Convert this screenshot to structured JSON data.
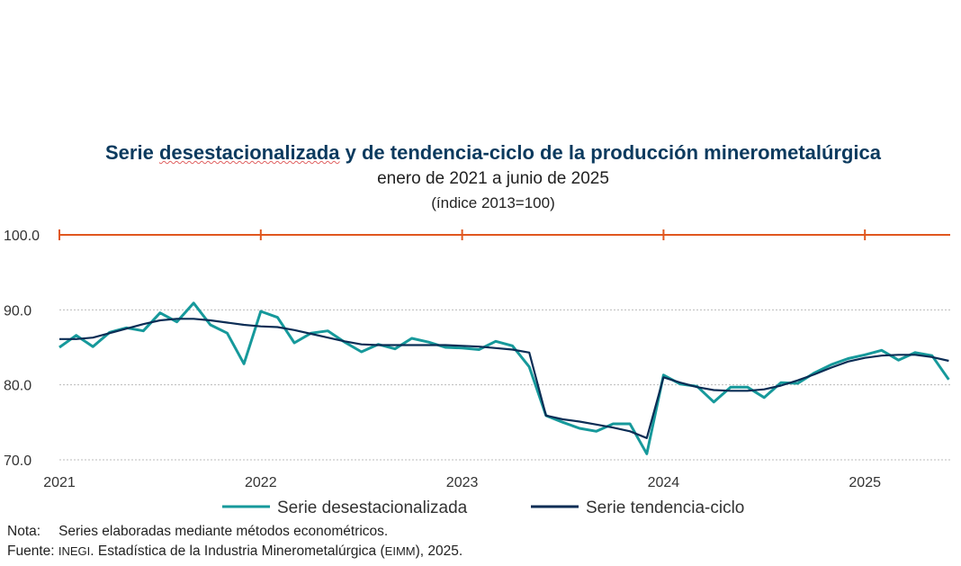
{
  "chart_data": {
    "type": "line",
    "title_part1": "Serie",
    "title_part2": "desestacionalizada",
    "title_part3": "y de tendencia-ciclo de la producción minerometalúrgica",
    "subtitle": "enero de 2021 a junio de 2025",
    "unit": "(índice 2013=100)",
    "x_start": "2021-01",
    "x_end": "2025-06",
    "x_ticks": [
      "2021",
      "2022",
      "2023",
      "2024",
      "2025"
    ],
    "y_ticks": [
      "70.0",
      "80.0",
      "90.0",
      "100.0"
    ],
    "ylim": [
      70,
      100
    ],
    "reference_line": 100,
    "series": [
      {
        "name": "Serie desestacionalizada",
        "color": "#16999b",
        "values": [
          85.0,
          86.6,
          85.1,
          87.0,
          87.6,
          87.2,
          89.6,
          88.4,
          90.9,
          88.0,
          86.9,
          82.8,
          89.8,
          89.0,
          85.6,
          86.9,
          87.2,
          85.7,
          84.4,
          85.4,
          84.8,
          86.2,
          85.7,
          85.0,
          84.9,
          84.7,
          85.8,
          85.2,
          82.4,
          75.9,
          75.0,
          74.2,
          73.8,
          74.8,
          74.8,
          70.8,
          81.3,
          80.1,
          79.8,
          77.7,
          79.7,
          79.7,
          78.3,
          80.3,
          80.2,
          81.6,
          82.7,
          83.5,
          84.0,
          84.6,
          83.3,
          84.3,
          83.9,
          80.7
        ]
      },
      {
        "name": "Serie tendencia-ciclo",
        "color": "#0b2d55",
        "values": [
          86.1,
          86.1,
          86.3,
          86.9,
          87.5,
          88.1,
          88.6,
          88.8,
          88.8,
          88.6,
          88.3,
          88.0,
          87.8,
          87.7,
          87.3,
          86.8,
          86.3,
          85.8,
          85.4,
          85.3,
          85.3,
          85.3,
          85.3,
          85.3,
          85.2,
          85.1,
          84.9,
          84.7,
          84.3,
          75.9,
          75.4,
          75.1,
          74.7,
          74.3,
          73.8,
          72.9,
          81.0,
          80.3,
          79.7,
          79.3,
          79.2,
          79.2,
          79.4,
          79.9,
          80.6,
          81.4,
          82.3,
          83.1,
          83.6,
          83.9,
          84.0,
          84.0,
          83.7,
          83.2
        ]
      }
    ],
    "reference_color": "#e0571f"
  },
  "notes": {
    "nota_label": "Nota:",
    "nota_text": "Series elaboradas mediante métodos econométricos.",
    "fuente_label": "Fuente:",
    "fuente_org": "INEGI",
    "fuente_text": ". Estadística de la Industria Minerometalúrgica (",
    "fuente_abbr": "EIMM",
    "fuente_end": "), 2025."
  }
}
